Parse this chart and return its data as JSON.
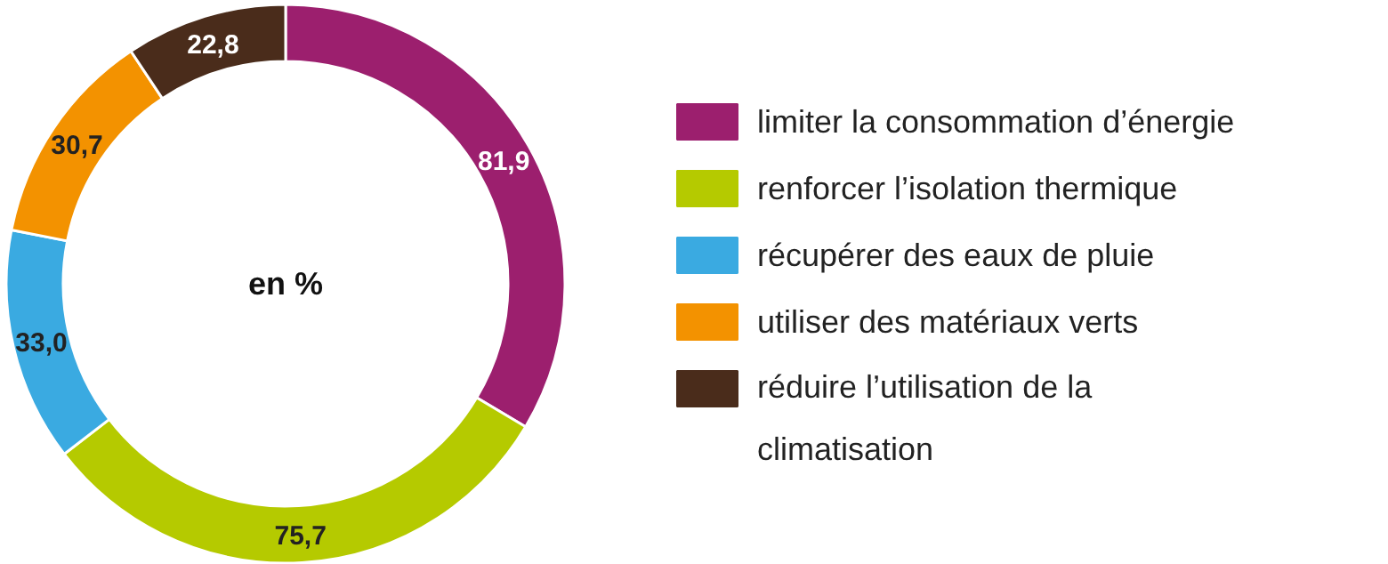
{
  "chart_data": {
    "type": "donut",
    "categories": [
      "limiter la consommation d’énergie",
      "renforcer l’isolation thermique",
      "récupérer des eaux de pluie",
      "utiliser des matériaux verts",
      "réduire l’utilisation de la climatisation"
    ],
    "values": [
      81.9,
      75.7,
      33.0,
      30.7,
      22.8
    ],
    "value_labels": [
      "81,9",
      "75,7",
      "33,0",
      "30,7",
      "22,8"
    ],
    "colors": [
      "#9c1f6e",
      "#b5ca00",
      "#3aaae1",
      "#f39200",
      "#4a2c1b"
    ],
    "annotations": [
      "en %"
    ],
    "legend": "right"
  }
}
